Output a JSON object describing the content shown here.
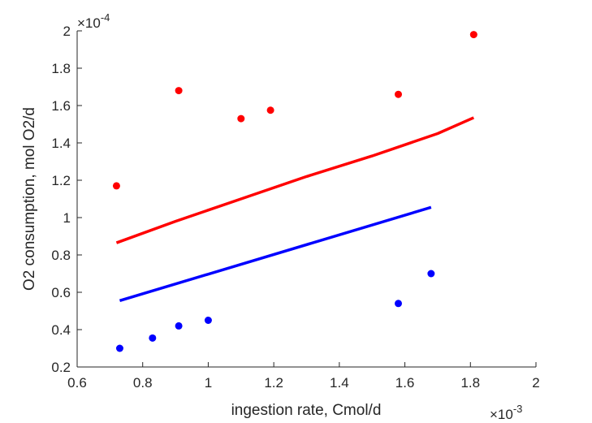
{
  "chart_data": {
    "type": "scatter",
    "xlabel": "ingestion rate, Cmol/d",
    "ylabel": "O2 consumption, mol O2/d",
    "xlim": [
      0.6,
      2.0
    ],
    "ylim": [
      0.2,
      2.0
    ],
    "x_exponent": "×10",
    "x_exponent_power": "-3",
    "y_exponent": "×10",
    "y_exponent_power": "-4",
    "x_ticks": [
      "0.6",
      "0.8",
      "1",
      "1.2",
      "1.4",
      "1.6",
      "1.8",
      "2"
    ],
    "x_tick_values": [
      0.6,
      0.8,
      1.0,
      1.2,
      1.4,
      1.6,
      1.8,
      2.0
    ],
    "y_ticks": [
      "0.2",
      "0.4",
      "0.6",
      "0.8",
      "1",
      "1.2",
      "1.4",
      "1.6",
      "1.8",
      "2"
    ],
    "y_tick_values": [
      0.2,
      0.4,
      0.6,
      0.8,
      1.0,
      1.2,
      1.4,
      1.6,
      1.8,
      2.0
    ],
    "grid": false,
    "box": false,
    "series": [
      {
        "kind": "scatter",
        "color": "#ff0000",
        "points": [
          {
            "x": 0.72,
            "y": 1.17
          },
          {
            "x": 0.91,
            "y": 1.68
          },
          {
            "x": 1.1,
            "y": 1.53
          },
          {
            "x": 1.19,
            "y": 1.575
          },
          {
            "x": 1.58,
            "y": 1.66
          },
          {
            "x": 1.81,
            "y": 1.98
          }
        ]
      },
      {
        "kind": "line",
        "color": "#ff0000",
        "points": [
          {
            "x": 0.72,
            "y": 0.865
          },
          {
            "x": 0.9,
            "y": 0.98
          },
          {
            "x": 1.1,
            "y": 1.1
          },
          {
            "x": 1.3,
            "y": 1.22
          },
          {
            "x": 1.5,
            "y": 1.33
          },
          {
            "x": 1.7,
            "y": 1.45
          },
          {
            "x": 1.81,
            "y": 1.535
          }
        ]
      },
      {
        "kind": "scatter",
        "color": "#0000ff",
        "points": [
          {
            "x": 0.73,
            "y": 0.3
          },
          {
            "x": 0.83,
            "y": 0.355
          },
          {
            "x": 0.91,
            "y": 0.42
          },
          {
            "x": 1.0,
            "y": 0.45
          },
          {
            "x": 1.58,
            "y": 0.54
          },
          {
            "x": 1.68,
            "y": 0.7
          }
        ]
      },
      {
        "kind": "line",
        "color": "#0000ff",
        "points": [
          {
            "x": 0.73,
            "y": 0.555
          },
          {
            "x": 1.68,
            "y": 1.055
          }
        ]
      }
    ]
  }
}
